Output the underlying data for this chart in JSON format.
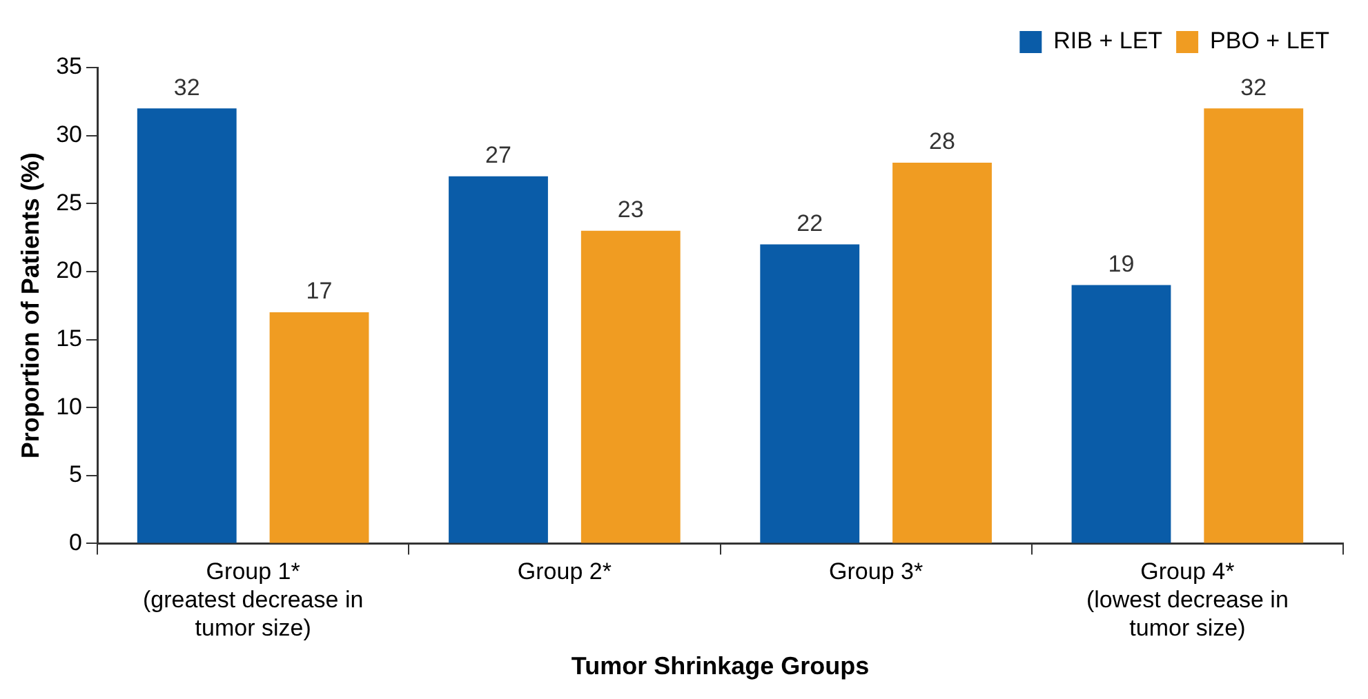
{
  "chart_data": {
    "type": "bar",
    "xlabel": "Tumor Shrinkage Groups",
    "ylabel": "Proportion of Patients (%)",
    "categories": [
      "Group 1*\n(greatest decrease in\ntumor size)",
      "Group 2*",
      "Group 3*",
      "Group 4*\n(lowest decrease in\ntumor size)"
    ],
    "series": [
      {
        "name": "RIB + LET",
        "color": "#0a5ca8",
        "values": [
          32,
          27,
          22,
          19
        ]
      },
      {
        "name": "PBO + LET",
        "color": "#f09c22",
        "values": [
          17,
          23,
          28,
          32
        ]
      }
    ],
    "ylim": [
      0,
      35
    ],
    "yticks": [
      0,
      5,
      10,
      15,
      20,
      25,
      30,
      35
    ],
    "grid": false,
    "legend": "top right",
    "data_labels": true
  }
}
